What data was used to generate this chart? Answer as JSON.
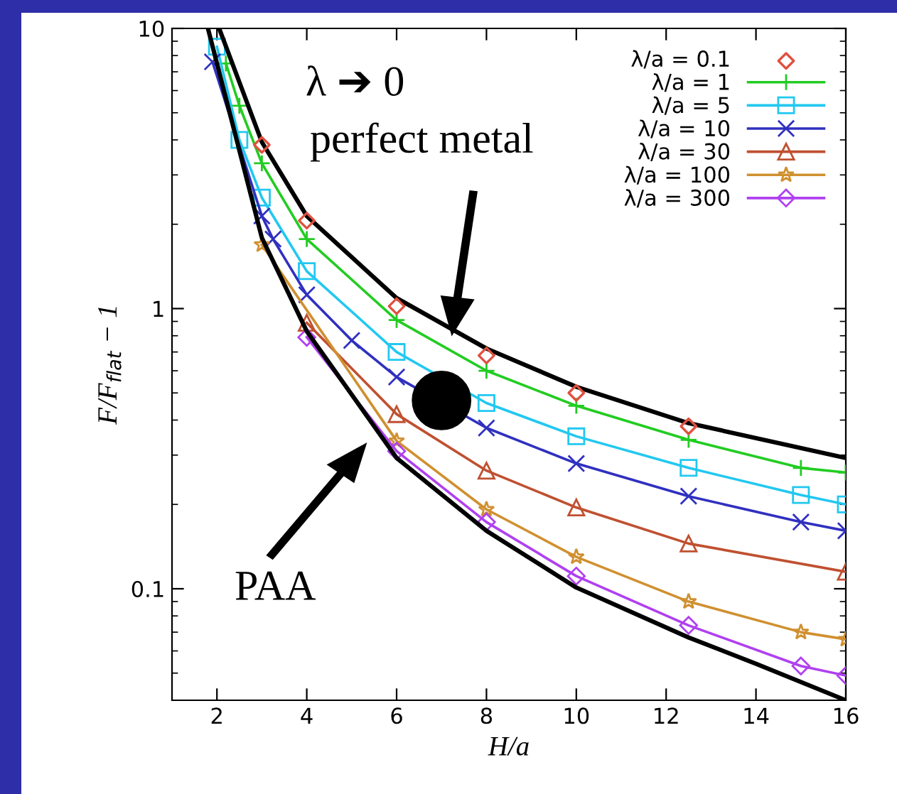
{
  "chart_data": {
    "type": "line",
    "xlabel": "H/a",
    "ylabel": "F/F$_{flat}$ − 1",
    "log": "y",
    "xlim": [
      1,
      16
    ],
    "ylim": [
      0.04,
      10
    ],
    "xticks": [
      2,
      4,
      6,
      8,
      10,
      12,
      14,
      16
    ],
    "yticks": [
      0.1,
      1,
      10
    ],
    "grid": false,
    "legend": "top right",
    "annotations": [
      "λ ➔ 0",
      "perfect metal",
      "PAA"
    ],
    "series": [
      {
        "name": "λ/a = 0.1",
        "type": "scatter",
        "color": "#e05040",
        "marker": "diamond",
        "x": [
          3,
          4,
          6,
          8,
          10,
          12.5
        ],
        "values": [
          3.84,
          2.06,
          1.02,
          0.68,
          0.5,
          0.38
        ]
      },
      {
        "name": "λ/a = 1",
        "color": "#22cc22",
        "marker": "plus",
        "x": [
          2.2,
          2.5,
          3,
          4,
          6,
          8,
          10,
          12.5,
          15,
          16
        ],
        "values": [
          7.5,
          5.3,
          3.3,
          1.77,
          0.91,
          0.6,
          0.45,
          0.34,
          0.27,
          0.26
        ]
      },
      {
        "name": "λ/a = 5",
        "color": "#22c8f0",
        "marker": "square",
        "x": [
          2,
          2.5,
          3,
          4,
          6,
          8,
          10,
          12.5,
          15,
          16
        ],
        "values": [
          8.6,
          4.0,
          2.49,
          1.36,
          0.7,
          0.46,
          0.35,
          0.27,
          0.216,
          0.2
        ]
      },
      {
        "name": "λ/a = 10",
        "color": "#3030c0",
        "marker": "cross",
        "x": [
          1.9,
          3,
          3.25,
          4,
          5,
          6,
          8,
          10,
          12.5,
          15,
          16
        ],
        "values": [
          7.6,
          2.14,
          1.77,
          1.12,
          0.77,
          0.57,
          0.375,
          0.28,
          0.214,
          0.173,
          0.161
        ]
      },
      {
        "name": "λ/a = 30",
        "color": "#c05030",
        "marker": "triangle",
        "x": [
          4,
          6,
          8,
          10,
          12.5,
          16
        ],
        "values": [
          0.89,
          0.42,
          0.264,
          0.195,
          0.145,
          0.115
        ]
      },
      {
        "name": "λ/a = 100",
        "color": "#d09030",
        "marker": "star",
        "x": [
          3,
          6,
          8,
          10,
          12.5,
          15,
          16
        ],
        "values": [
          1.69,
          0.337,
          0.192,
          0.13,
          0.09,
          0.07,
          0.066
        ]
      },
      {
        "name": "λ/a = 300",
        "color": "#b040f0",
        "marker": "diamond",
        "x": [
          4,
          6,
          8,
          10,
          12.5,
          15,
          16
        ],
        "values": [
          0.79,
          0.31,
          0.173,
          0.111,
          0.074,
          0.053,
          0.049
        ]
      },
      {
        "color": "#000000",
        "marker": "none",
        "x": [
          2.05,
          3,
          4,
          6,
          8,
          10,
          12.5,
          16
        ],
        "values": [
          10,
          3.93,
          2.14,
          1.09,
          0.72,
          0.526,
          0.39,
          0.293
        ]
      },
      {
        "type": "scatter",
        "color": "#000000",
        "marker": "circle",
        "x": [
          7
        ],
        "values": [
          0.47
        ]
      },
      {
        "color": "#000000",
        "marker": "none",
        "x": [
          1.8,
          3,
          4,
          6,
          8,
          10,
          12.5,
          14,
          16
        ],
        "values": [
          10,
          1.79,
          0.83,
          0.293,
          0.161,
          0.101,
          0.067,
          0.054,
          0.04
        ]
      }
    ]
  }
}
